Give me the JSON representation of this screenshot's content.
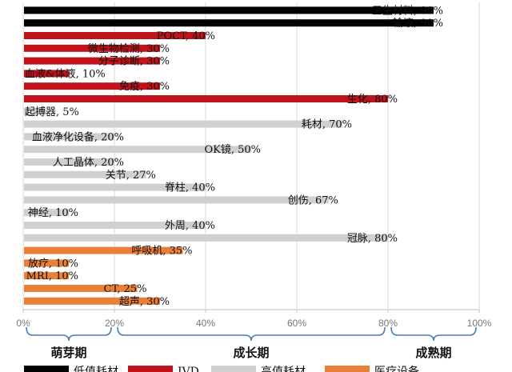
{
  "chart_data": {
    "type": "bar",
    "orientation": "horizontal",
    "xlim": [
      0,
      100
    ],
    "xticks": [
      "0%",
      "20%",
      "40%",
      "60%",
      "80%",
      "100%"
    ],
    "grid": true,
    "colors": {
      "低值耗材": "#000000",
      "IVD": "#c0141c",
      "高值耗材": "#d0d0d0",
      "医疗设备": "#e8803a"
    },
    "bars": [
      {
        "label": "卫生材料, 90%",
        "value": 90,
        "group": "低值耗材"
      },
      {
        "label": "输液, 90%",
        "value": 90,
        "group": "低值耗材"
      },
      {
        "label": "POCT, 40%",
        "value": 40,
        "group": "IVD"
      },
      {
        "label": "微生物检测, 30%",
        "value": 30,
        "group": "IVD"
      },
      {
        "label": "分子诊断, 30%",
        "value": 30,
        "group": "IVD"
      },
      {
        "label": "血液&体液, 10%",
        "value": 10,
        "group": "IVD"
      },
      {
        "label": "免疫, 30%",
        "value": 30,
        "group": "IVD"
      },
      {
        "label": "生化, 80%",
        "value": 80,
        "group": "IVD"
      },
      {
        "label": "起搏器, 5%",
        "value": 5,
        "group": "高值耗材"
      },
      {
        "label": "耗材, 70%",
        "value": 70,
        "group": "高值耗材"
      },
      {
        "label": "血液净化设备, 20%",
        "value": 20,
        "group": "高值耗材"
      },
      {
        "label": "OK镜, 50%",
        "value": 50,
        "group": "高值耗材"
      },
      {
        "label": "人工晶体, 20%",
        "value": 20,
        "group": "高值耗材"
      },
      {
        "label": "关节, 27%",
        "value": 27,
        "group": "高值耗材"
      },
      {
        "label": "脊柱, 40%",
        "value": 40,
        "group": "高值耗材"
      },
      {
        "label": "创伤, 67%",
        "value": 67,
        "group": "高值耗材"
      },
      {
        "label": "神经, 10%",
        "value": 10,
        "group": "高值耗材"
      },
      {
        "label": "外周, 40%",
        "value": 40,
        "group": "高值耗材"
      },
      {
        "label": "冠脉, 80%",
        "value": 80,
        "group": "高值耗材"
      },
      {
        "label": "呼吸机, 35%",
        "value": 35,
        "group": "医疗设备"
      },
      {
        "label": "放疗, 10%",
        "value": 10,
        "group": "医疗设备"
      },
      {
        "label": "MRI, 10%",
        "value": 10,
        "group": "医疗设备"
      },
      {
        "label": "CT, 25%",
        "value": 25,
        "group": "医疗设备"
      },
      {
        "label": "超声, 30%",
        "value": 30,
        "group": "医疗设备"
      }
    ],
    "stages": [
      {
        "label": "萌芽期",
        "range": [
          0,
          20
        ]
      },
      {
        "label": "成长期",
        "range": [
          20,
          80
        ]
      },
      {
        "label": "成熟期",
        "range": [
          80,
          100
        ]
      }
    ],
    "legend": {
      "placement": "bottom",
      "entries": [
        "低值耗材",
        "IVD",
        "高值耗材",
        "医疗设备"
      ]
    }
  }
}
